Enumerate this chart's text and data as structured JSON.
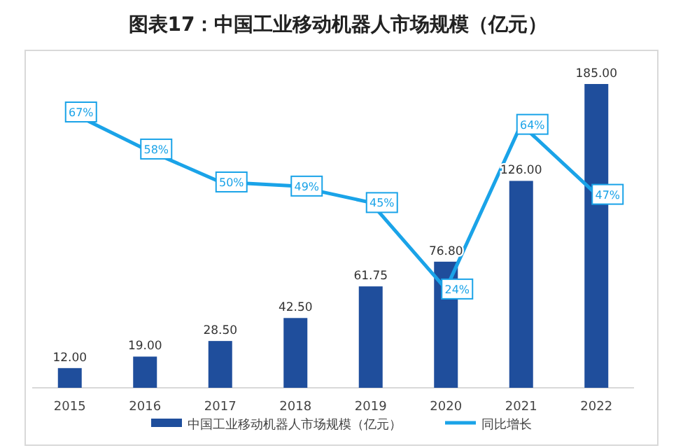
{
  "chart_data": {
    "type": "bar",
    "title": "图表17：中国工业移动机器人市场规模（亿元）",
    "categories": [
      "2015",
      "2016",
      "2017",
      "2018",
      "2019",
      "2020",
      "2021",
      "2022"
    ],
    "series": [
      {
        "name": "中国工业移动机器人市场规模（亿元）",
        "color": "#1f4e9c",
        "values": [
          12,
          19,
          28.5,
          42.5,
          61.75,
          76.8,
          126,
          185
        ],
        "value_labels": [
          "12.00",
          "19.00",
          "28.50",
          "42.50",
          "61.75",
          "76.80",
          "126.00",
          "185.00"
        ]
      },
      {
        "name": "同比增长",
        "type": "line",
        "axis": "y2",
        "color": "#1aa3e8",
        "values": [
          67,
          58,
          50,
          49,
          45,
          24,
          64,
          47
        ],
        "value_labels": [
          "67%",
          "58%",
          "50%",
          "49%",
          "45%",
          "24%",
          "64%",
          "47%"
        ]
      }
    ],
    "legend": "bottom"
  }
}
